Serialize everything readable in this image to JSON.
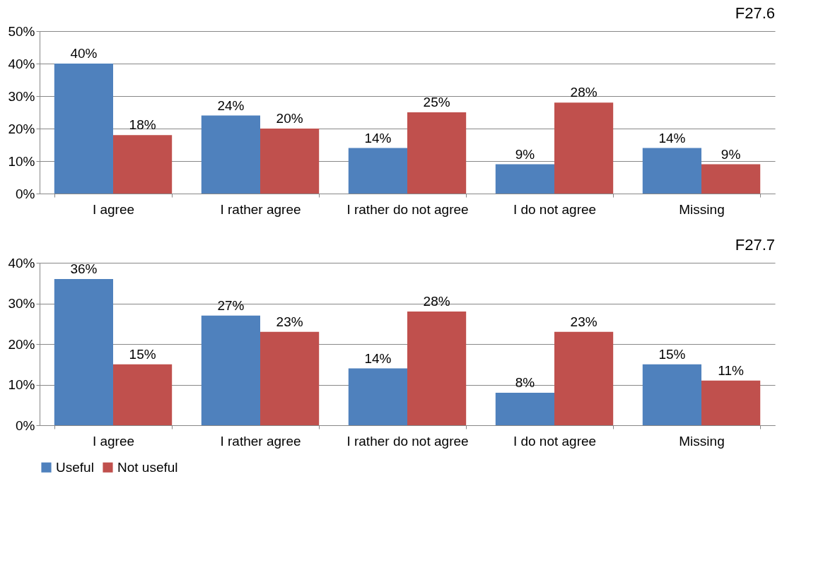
{
  "chart_data": [
    {
      "type": "bar",
      "title": "F27.6",
      "categories": [
        "I agree",
        "I rather agree",
        "I rather do not agree",
        "I do not agree",
        "Missing"
      ],
      "series": [
        {
          "color": "#4f81bd",
          "values": [
            40,
            24,
            14,
            9,
            14
          ],
          "value_labels": [
            "40%",
            "24%",
            "14%",
            "9%",
            "14%"
          ]
        },
        {
          "color": "#c0504d",
          "values": [
            18,
            20,
            25,
            28,
            9
          ],
          "value_labels": [
            "18%",
            "20%",
            "25%",
            "28%",
            "9%"
          ]
        }
      ],
      "ylim": [
        0,
        50
      ],
      "yticks": [
        {
          "value": 0,
          "label": "0%"
        },
        {
          "value": 10,
          "label": "10%"
        },
        {
          "value": 20,
          "label": "20%"
        },
        {
          "value": 30,
          "label": "30%"
        },
        {
          "value": 40,
          "label": "40%"
        },
        {
          "value": 50,
          "label": "50%"
        }
      ],
      "grid": "y"
    },
    {
      "type": "bar",
      "title": "F27.7",
      "categories": [
        "I agree",
        "I rather agree",
        "I rather do not agree",
        "I do not agree",
        "Missing"
      ],
      "series": [
        {
          "name": "Useful",
          "color": "#4f81bd",
          "values": [
            36,
            27,
            14,
            8,
            15
          ],
          "value_labels": [
            "36%",
            "27%",
            "14%",
            "8%",
            "15%"
          ]
        },
        {
          "name": "Not useful",
          "color": "#c0504d",
          "values": [
            15,
            23,
            28,
            23,
            11
          ],
          "value_labels": [
            "15%",
            "23%",
            "28%",
            "23%",
            "11%"
          ]
        }
      ],
      "ylim": [
        0,
        40
      ],
      "yticks": [
        {
          "value": 0,
          "label": "0%"
        },
        {
          "value": 10,
          "label": "10%"
        },
        {
          "value": 20,
          "label": "20%"
        },
        {
          "value": 30,
          "label": "30%"
        },
        {
          "value": 40,
          "label": "40%"
        }
      ],
      "grid": "y",
      "legend": "bottom"
    }
  ]
}
